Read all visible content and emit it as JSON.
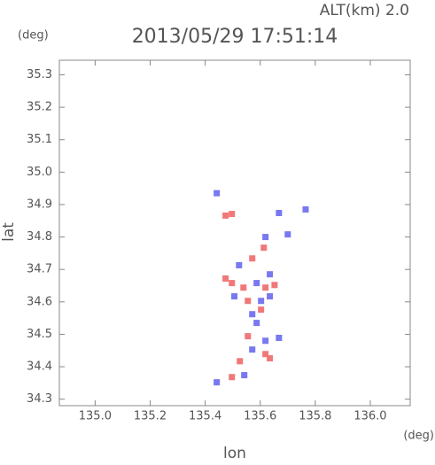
{
  "chart_data": {
    "type": "scatter",
    "title": "2013/05/29 17:51:14",
    "annotation": "ALT(km)  2.0",
    "y_unit": "(deg)",
    "x_unit": "(deg)",
    "ylabel": "lat",
    "xlabel": "lon",
    "xlim": [
      134.87,
      136.145
    ],
    "ylim": [
      34.28,
      35.345
    ],
    "xticks": [
      {
        "value": 135,
        "label": "135.0"
      },
      135.2,
      135.4,
      135.6,
      135.8,
      {
        "value": 136,
        "label": "136.0"
      }
    ],
    "yticks": [
      34.3,
      34.4,
      34.5,
      34.6,
      34.7,
      34.8,
      34.9,
      {
        "value": 35,
        "label": "35.0"
      },
      35.1,
      35.2,
      35.3
    ],
    "series": [
      {
        "color": "#f07878",
        "x": [
          135.474,
          135.497,
          135.613,
          135.571,
          135.497,
          135.539,
          135.619,
          135.652,
          135.555,
          135.474,
          135.603,
          135.555,
          135.619,
          135.635,
          135.526,
          135.497
        ],
        "values": [
          34.866,
          34.871,
          34.767,
          34.734,
          34.658,
          34.644,
          34.644,
          34.652,
          34.603,
          34.672,
          34.576,
          34.494,
          34.439,
          34.426,
          34.417,
          34.368
        ]
      },
      {
        "color": "#7878f0",
        "x": [
          135.442,
          135.668,
          135.765,
          135.619,
          135.7,
          135.523,
          135.635,
          135.587,
          135.506,
          135.603,
          135.635,
          135.571,
          135.587,
          135.619,
          135.668,
          135.571,
          135.542,
          135.442
        ],
        "values": [
          34.935,
          34.874,
          34.885,
          34.8,
          34.808,
          34.713,
          34.685,
          34.658,
          34.617,
          34.603,
          34.617,
          34.562,
          34.535,
          34.48,
          34.489,
          34.453,
          34.374,
          34.352
        ]
      }
    ]
  }
}
